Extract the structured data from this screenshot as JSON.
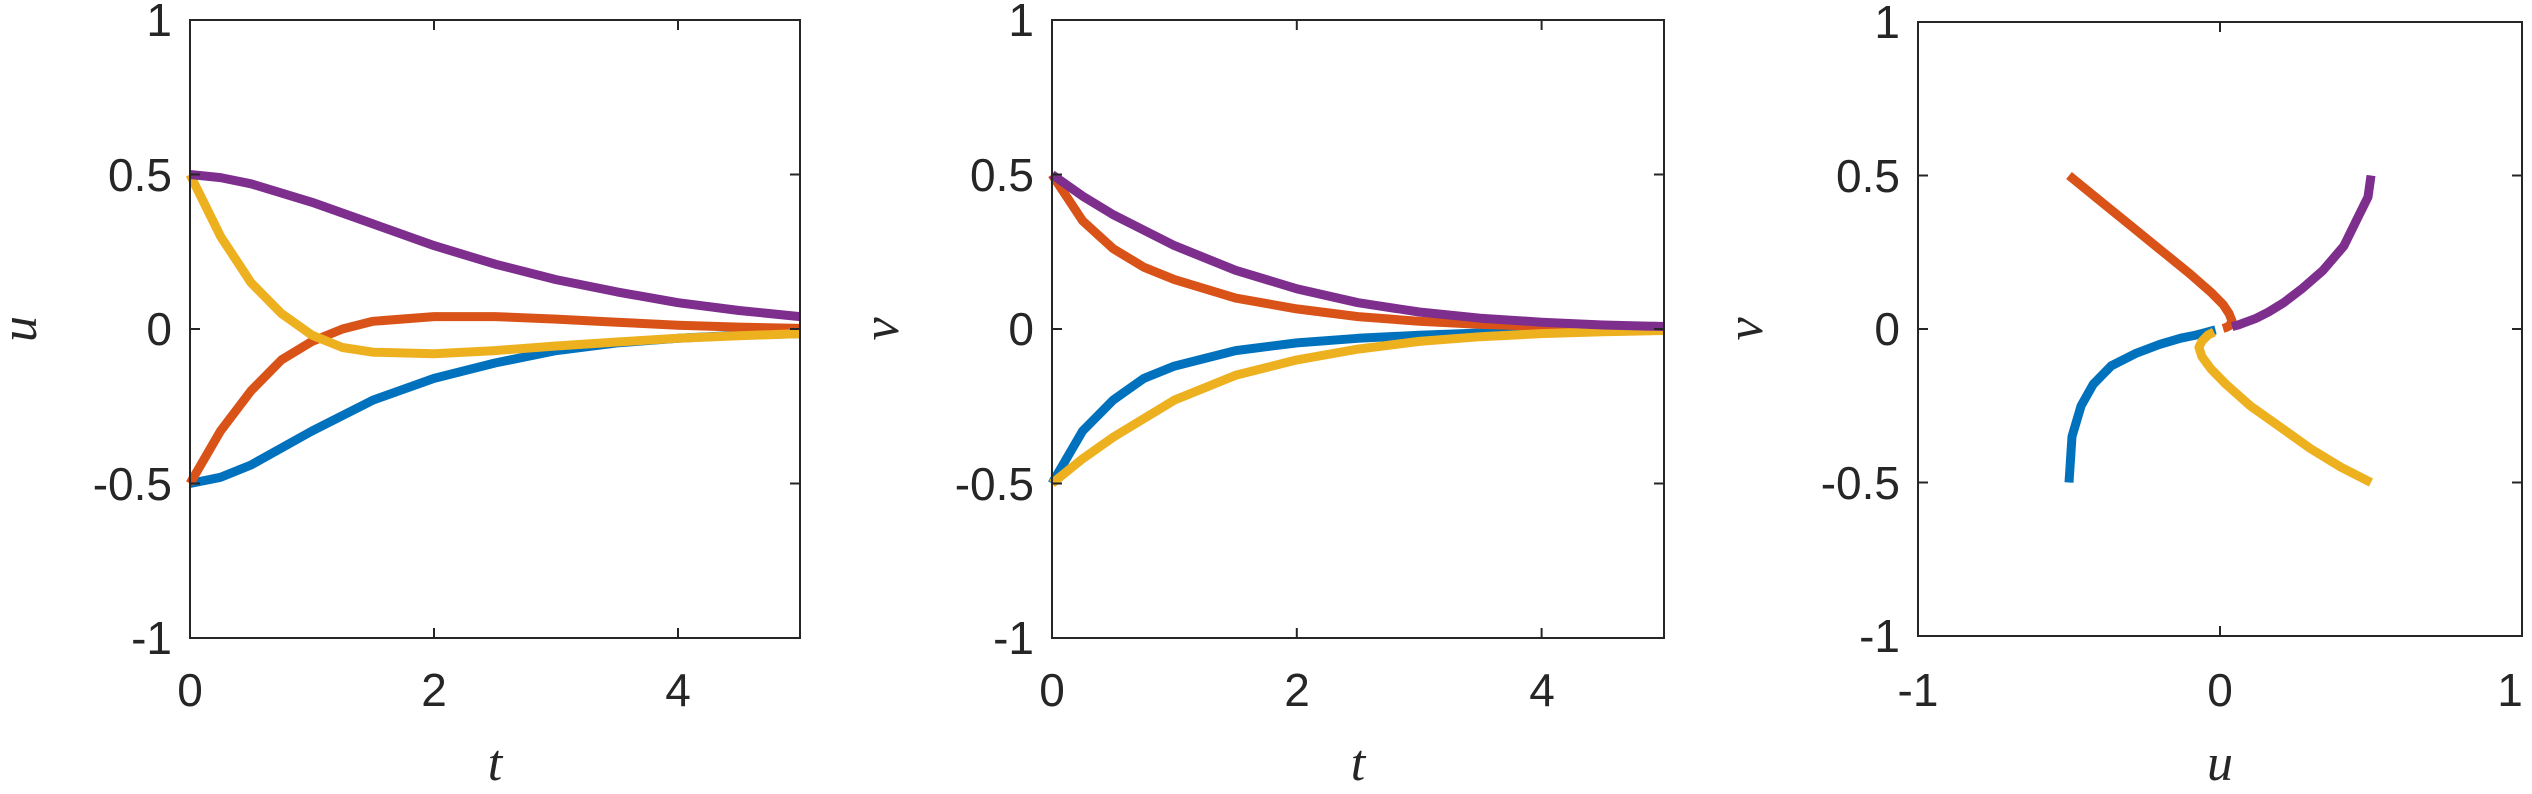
{
  "colors": {
    "blue": "#0072BD",
    "orange": "#D95319",
    "yellow": "#EDB120",
    "purple": "#7E2F8E",
    "axes": "#262626",
    "background": "#ffffff"
  },
  "chart_data": [
    {
      "type": "line",
      "xlabel": "t",
      "ylabel": "u",
      "xlim": [
        0,
        5
      ],
      "ylim": [
        -1,
        1
      ],
      "xticks": [
        "0",
        "2",
        "4"
      ],
      "yticks": [
        "-1",
        "-0.5",
        "0",
        "0.5",
        "1"
      ],
      "grid": false,
      "series": [
        {
          "color": "blue",
          "x": [
            0,
            0.25,
            0.5,
            1,
            1.5,
            2,
            2.5,
            3,
            3.5,
            4,
            4.5,
            5
          ],
          "y": [
            -0.5,
            -0.48,
            -0.44,
            -0.33,
            -0.23,
            -0.16,
            -0.11,
            -0.07,
            -0.045,
            -0.03,
            -0.02,
            -0.015
          ]
        },
        {
          "color": "orange",
          "x": [
            0,
            0.25,
            0.5,
            0.75,
            1,
            1.25,
            1.5,
            2,
            2.5,
            3,
            3.5,
            4,
            4.5,
            5
          ],
          "y": [
            -0.5,
            -0.33,
            -0.2,
            -0.1,
            -0.04,
            0.0,
            0.025,
            0.04,
            0.04,
            0.032,
            0.022,
            0.012,
            0.006,
            0.002
          ]
        },
        {
          "color": "yellow",
          "x": [
            0,
            0.25,
            0.5,
            0.75,
            1,
            1.25,
            1.5,
            2,
            2.5,
            3,
            3.5,
            4,
            4.5,
            5
          ],
          "y": [
            0.5,
            0.3,
            0.15,
            0.05,
            -0.02,
            -0.06,
            -0.075,
            -0.08,
            -0.07,
            -0.055,
            -0.042,
            -0.03,
            -0.022,
            -0.015
          ]
        },
        {
          "color": "purple",
          "x": [
            0,
            0.25,
            0.5,
            1,
            1.5,
            2,
            2.5,
            3,
            3.5,
            4,
            4.5,
            5
          ],
          "y": [
            0.5,
            0.49,
            0.47,
            0.41,
            0.34,
            0.27,
            0.21,
            0.16,
            0.12,
            0.085,
            0.06,
            0.04
          ]
        }
      ]
    },
    {
      "type": "line",
      "xlabel": "t",
      "ylabel": "v",
      "xlim": [
        0,
        5
      ],
      "ylim": [
        -1,
        1
      ],
      "xticks": [
        "0",
        "2",
        "4"
      ],
      "yticks": [
        "-1",
        "-0.5",
        "0",
        "0.5",
        "1"
      ],
      "grid": false,
      "series": [
        {
          "color": "blue",
          "x": [
            0,
            0.25,
            0.5,
            0.75,
            1,
            1.5,
            2,
            2.5,
            3,
            3.5,
            4,
            4.5,
            5
          ],
          "y": [
            -0.5,
            -0.33,
            -0.23,
            -0.16,
            -0.12,
            -0.07,
            -0.045,
            -0.03,
            -0.02,
            -0.013,
            -0.008,
            -0.005,
            -0.003
          ]
        },
        {
          "color": "orange",
          "x": [
            0,
            0.25,
            0.5,
            0.75,
            1,
            1.5,
            2,
            2.5,
            3,
            3.5,
            4,
            4.5,
            5
          ],
          "y": [
            0.5,
            0.35,
            0.26,
            0.2,
            0.16,
            0.1,
            0.065,
            0.04,
            0.025,
            0.015,
            0.009,
            0.005,
            0.003
          ]
        },
        {
          "color": "yellow",
          "x": [
            0,
            0.25,
            0.5,
            1,
            1.5,
            2,
            2.5,
            3,
            3.5,
            4,
            4.5,
            5
          ],
          "y": [
            -0.5,
            -0.42,
            -0.35,
            -0.23,
            -0.15,
            -0.1,
            -0.065,
            -0.04,
            -0.025,
            -0.015,
            -0.009,
            -0.005
          ]
        },
        {
          "color": "purple",
          "x": [
            0,
            0.25,
            0.5,
            1,
            1.5,
            2,
            2.5,
            3,
            3.5,
            4,
            4.5,
            5
          ],
          "y": [
            0.5,
            0.43,
            0.37,
            0.27,
            0.19,
            0.13,
            0.085,
            0.055,
            0.035,
            0.022,
            0.013,
            0.008
          ]
        }
      ]
    },
    {
      "type": "line",
      "xlabel": "u",
      "ylabel": "v",
      "xlim": [
        -1,
        1
      ],
      "ylim": [
        -1,
        1
      ],
      "xticks": [
        "-1",
        "0",
        "1"
      ],
      "yticks": [
        "-1",
        "-0.5",
        "0",
        "0.5",
        "1"
      ],
      "grid": false,
      "series": [
        {
          "color": "blue",
          "x": [
            -0.5,
            -0.49,
            -0.46,
            -0.42,
            -0.36,
            -0.28,
            -0.2,
            -0.13,
            -0.08,
            -0.05,
            -0.03,
            -0.015
          ],
          "y": [
            -0.5,
            -0.35,
            -0.25,
            -0.18,
            -0.12,
            -0.08,
            -0.05,
            -0.03,
            -0.02,
            -0.012,
            -0.007,
            -0.003
          ]
        },
        {
          "color": "orange",
          "x": [
            -0.5,
            -0.4,
            -0.3,
            -0.2,
            -0.1,
            -0.03,
            0.01,
            0.03,
            0.04,
            0.03,
            0.02,
            0.01
          ],
          "y": [
            0.5,
            0.42,
            0.34,
            0.26,
            0.18,
            0.12,
            0.08,
            0.05,
            0.025,
            0.01,
            0.005,
            0.002
          ]
        },
        {
          "color": "yellow",
          "x": [
            0.5,
            0.4,
            0.3,
            0.2,
            0.1,
            0.02,
            -0.03,
            -0.06,
            -0.07,
            -0.06,
            -0.04,
            -0.02
          ],
          "y": [
            -0.5,
            -0.45,
            -0.39,
            -0.32,
            -0.25,
            -0.18,
            -0.13,
            -0.09,
            -0.06,
            -0.04,
            -0.02,
            -0.01
          ]
        },
        {
          "color": "purple",
          "x": [
            0.5,
            0.49,
            0.46,
            0.41,
            0.34,
            0.27,
            0.21,
            0.16,
            0.12,
            0.085,
            0.06,
            0.04
          ],
          "y": [
            0.5,
            0.43,
            0.37,
            0.27,
            0.19,
            0.13,
            0.085,
            0.055,
            0.035,
            0.022,
            0.013,
            0.008
          ]
        }
      ]
    }
  ]
}
